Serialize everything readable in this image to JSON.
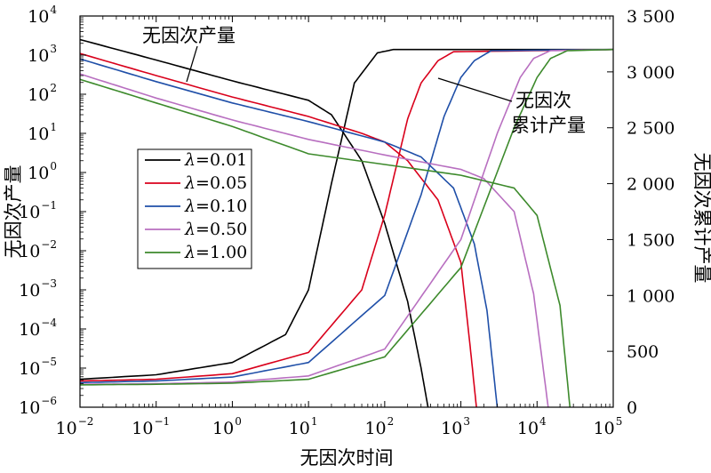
{
  "chart_data": {
    "type": "line",
    "x_axis": {
      "label": "无因次时间",
      "scale": "log",
      "range": [
        0.01,
        100000
      ],
      "tick_values": [
        0.01,
        0.1,
        1,
        10,
        100,
        1000,
        10000,
        100000
      ],
      "tick_labels": [
        {
          "base": "10",
          "exp": "−2"
        },
        {
          "base": "10",
          "exp": "−1"
        },
        {
          "base": "10",
          "exp": "0"
        },
        {
          "base": "10",
          "exp": "1"
        },
        {
          "base": "10",
          "exp": "2"
        },
        {
          "base": "10",
          "exp": "3"
        },
        {
          "base": "10",
          "exp": "4"
        },
        {
          "base": "10",
          "exp": "5"
        }
      ]
    },
    "y_left": {
      "label": "无因次产量",
      "scale": "log",
      "range": [
        1e-06,
        10000
      ],
      "tick_values": [
        1e-06,
        1e-05,
        0.0001,
        0.001,
        0.01,
        0.1,
        1,
        10,
        100,
        1000,
        10000
      ],
      "tick_labels": [
        {
          "base": "10",
          "exp": "−6"
        },
        {
          "base": "10",
          "exp": "−5"
        },
        {
          "base": "10",
          "exp": "−4"
        },
        {
          "base": "10",
          "exp": "−3"
        },
        {
          "base": "10",
          "exp": "−2"
        },
        {
          "base": "10",
          "exp": "−1"
        },
        {
          "base": "10",
          "exp": "0"
        },
        {
          "base": "10",
          "exp": "1"
        },
        {
          "base": "10",
          "exp": "2"
        },
        {
          "base": "10",
          "exp": "3"
        },
        {
          "base": "10",
          "exp": "4"
        }
      ]
    },
    "y_right": {
      "label": "无因次累计产量",
      "scale": "linear",
      "range": [
        0,
        3500
      ],
      "tick_values": [
        0,
        500,
        1000,
        1500,
        2000,
        2500,
        3000,
        3500
      ],
      "tick_labels": [
        "0",
        "500",
        "1 000",
        "1 500",
        "2 000",
        "2 500",
        "3 000",
        "3 500"
      ]
    },
    "annotations": [
      {
        "text_lines": [
          "无因次产量"
        ],
        "target": "rate_curves"
      },
      {
        "text_lines": [
          "无因次",
          "累计产量"
        ],
        "target": "cumulative_curves"
      }
    ],
    "legend": {
      "placement": "left-center",
      "entries": [
        {
          "symbol": "λ",
          "value": "=0.01",
          "color": "#000000"
        },
        {
          "symbol": "λ",
          "value": "=0.05",
          "color": "#d9001b"
        },
        {
          "symbol": "λ",
          "value": "=0.10",
          "color": "#1f4fa8"
        },
        {
          "symbol": "λ",
          "value": "=0.50",
          "color": "#b86fc0"
        },
        {
          "symbol": "λ",
          "value": "=1.00",
          "color": "#3d8a2c"
        }
      ]
    },
    "series": [
      {
        "lambda": 0.01,
        "color": "#000000",
        "rate": [
          [
            0.01,
            2500
          ],
          [
            0.1,
            750
          ],
          [
            1,
            220
          ],
          [
            10,
            70
          ],
          [
            20,
            30
          ],
          [
            50,
            2
          ],
          [
            100,
            0.05
          ],
          [
            200,
            0.0005
          ],
          [
            300,
            1e-05
          ],
          [
            370,
            1e-06
          ]
        ],
        "cumulative": [
          [
            0.01,
            250
          ],
          [
            0.1,
            290
          ],
          [
            1,
            400
          ],
          [
            5,
            650
          ],
          [
            10,
            1050
          ],
          [
            20,
            2000
          ],
          [
            40,
            2900
          ],
          [
            80,
            3170
          ],
          [
            130,
            3200
          ],
          [
            100000,
            3200
          ]
        ]
      },
      {
        "lambda": 0.05,
        "color": "#d9001b",
        "rate": [
          [
            0.01,
            1100
          ],
          [
            0.1,
            300
          ],
          [
            1,
            85
          ],
          [
            10,
            27
          ],
          [
            50,
            10
          ],
          [
            100,
            6
          ],
          [
            200,
            2
          ],
          [
            500,
            0.2
          ],
          [
            1000,
            0.005
          ],
          [
            1300,
            5e-05
          ],
          [
            1600,
            1e-06
          ]
        ],
        "cumulative": [
          [
            0.01,
            235
          ],
          [
            0.1,
            250
          ],
          [
            1,
            300
          ],
          [
            10,
            490
          ],
          [
            50,
            1050
          ],
          [
            100,
            1720
          ],
          [
            200,
            2580
          ],
          [
            300,
            2900
          ],
          [
            500,
            3100
          ],
          [
            800,
            3180
          ],
          [
            100000,
            3200
          ]
        ]
      },
      {
        "lambda": 0.1,
        "color": "#1f4fa8",
        "rate": [
          [
            0.01,
            800
          ],
          [
            0.1,
            210
          ],
          [
            1,
            60
          ],
          [
            10,
            20
          ],
          [
            100,
            6
          ],
          [
            300,
            2.5
          ],
          [
            800,
            0.4
          ],
          [
            1500,
            0.015
          ],
          [
            2200,
            0.0003
          ],
          [
            3000,
            1e-06
          ]
        ],
        "cumulative": [
          [
            0.01,
            220
          ],
          [
            0.1,
            235
          ],
          [
            1,
            270
          ],
          [
            10,
            400
          ],
          [
            100,
            1000
          ],
          [
            300,
            1900
          ],
          [
            600,
            2600
          ],
          [
            1000,
            2950
          ],
          [
            1500,
            3100
          ],
          [
            2500,
            3190
          ],
          [
            100000,
            3200
          ]
        ]
      },
      {
        "lambda": 0.5,
        "color": "#b86fc0",
        "rate": [
          [
            0.01,
            330
          ],
          [
            0.1,
            80
          ],
          [
            1,
            22
          ],
          [
            10,
            7
          ],
          [
            100,
            2.8
          ],
          [
            1000,
            1.2
          ],
          [
            2000,
            0.7
          ],
          [
            5000,
            0.1
          ],
          [
            9000,
            0.0008
          ],
          [
            14000,
            1e-06
          ]
        ],
        "cumulative": [
          [
            0.01,
            205
          ],
          [
            0.1,
            210
          ],
          [
            1,
            225
          ],
          [
            10,
            280
          ],
          [
            100,
            520
          ],
          [
            1000,
            1500
          ],
          [
            3000,
            2450
          ],
          [
            6000,
            2950
          ],
          [
            9000,
            3120
          ],
          [
            15000,
            3190
          ],
          [
            100000,
            3200
          ]
        ]
      },
      {
        "lambda": 1.0,
        "color": "#3d8a2c",
        "rate": [
          [
            0.01,
            240
          ],
          [
            0.1,
            60
          ],
          [
            1,
            15
          ],
          [
            10,
            3
          ],
          [
            100,
            1.6
          ],
          [
            1000,
            0.85
          ],
          [
            5000,
            0.4
          ],
          [
            10000,
            0.08
          ],
          [
            20000,
            0.0004
          ],
          [
            27000,
            1e-06
          ]
        ],
        "cumulative": [
          [
            0.01,
            200
          ],
          [
            0.1,
            205
          ],
          [
            1,
            215
          ],
          [
            10,
            250
          ],
          [
            100,
            450
          ],
          [
            1000,
            1250
          ],
          [
            5000,
            2500
          ],
          [
            10000,
            2950
          ],
          [
            15000,
            3120
          ],
          [
            25000,
            3190
          ],
          [
            100000,
            3200
          ]
        ]
      }
    ]
  }
}
